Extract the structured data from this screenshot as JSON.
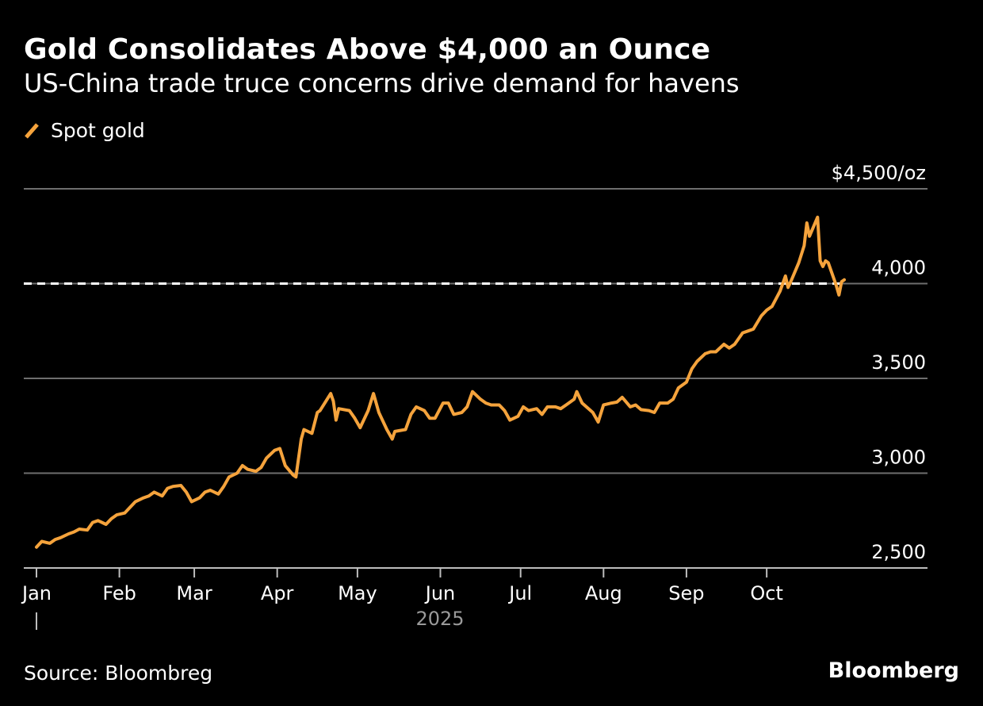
{
  "header": {
    "title": "Gold Consolidates Above $4,000 an Ounce",
    "subtitle": "US-China trade truce concerns drive demand for havens"
  },
  "legend": {
    "series_name": "Spot gold"
  },
  "footer": {
    "source": "Source: Bloombreg",
    "brand": "Bloomberg"
  },
  "colors": {
    "background": "#000000",
    "series": "#f5a33c",
    "grid": "#6e6e6e",
    "reference_line": "#ffffff"
  },
  "chart_data": {
    "type": "line",
    "title": "Gold Consolidates Above $4,000 an Ounce",
    "subtitle": "US-China trade truce concerns drive demand for havens",
    "xlabel": "2025",
    "ylabel": "",
    "ylim": [
      2500,
      4500
    ],
    "y_ticks": [
      2500,
      3000,
      3500,
      4000,
      4500
    ],
    "y_tick_labels": [
      "2,500",
      "3,000",
      "3,500",
      "4,000",
      "$4,500/oz"
    ],
    "x_ticks": [
      "2025-01-01",
      "2025-02-01",
      "2025-03-01",
      "2025-04-01",
      "2025-05-01",
      "2025-06-01",
      "2025-07-01",
      "2025-08-01",
      "2025-09-01",
      "2025-10-01"
    ],
    "x_tick_labels": [
      "Jan",
      "Feb",
      "Mar",
      "Apr",
      "May",
      "Jun",
      "Jul",
      "Aug",
      "Sep",
      "Oct"
    ],
    "year_label": "2025",
    "reference_lines": [
      {
        "y": 4000,
        "style": "dashed"
      }
    ],
    "grid": true,
    "legend_position": "top-left",
    "series": [
      {
        "name": "Spot gold",
        "points": [
          [
            "2025-01-01",
            2610
          ],
          [
            "2025-01-03",
            2640
          ],
          [
            "2025-01-06",
            2630
          ],
          [
            "2025-01-08",
            2650
          ],
          [
            "2025-01-10",
            2660
          ],
          [
            "2025-01-13",
            2680
          ],
          [
            "2025-01-15",
            2690
          ],
          [
            "2025-01-17",
            2705
          ],
          [
            "2025-01-20",
            2700
          ],
          [
            "2025-01-22",
            2740
          ],
          [
            "2025-01-24",
            2750
          ],
          [
            "2025-01-27",
            2730
          ],
          [
            "2025-01-29",
            2760
          ],
          [
            "2025-01-31",
            2780
          ],
          [
            "2025-02-03",
            2790
          ],
          [
            "2025-02-05",
            2820
          ],
          [
            "2025-02-07",
            2850
          ],
          [
            "2025-02-10",
            2870
          ],
          [
            "2025-02-12",
            2880
          ],
          [
            "2025-02-14",
            2900
          ],
          [
            "2025-02-17",
            2880
          ],
          [
            "2025-02-19",
            2920
          ],
          [
            "2025-02-21",
            2930
          ],
          [
            "2025-02-24",
            2935
          ],
          [
            "2025-02-26",
            2900
          ],
          [
            "2025-02-28",
            2850
          ],
          [
            "2025-03-03",
            2870
          ],
          [
            "2025-03-05",
            2900
          ],
          [
            "2025-03-07",
            2910
          ],
          [
            "2025-03-10",
            2890
          ],
          [
            "2025-03-12",
            2930
          ],
          [
            "2025-03-14",
            2980
          ],
          [
            "2025-03-17",
            3000
          ],
          [
            "2025-03-19",
            3040
          ],
          [
            "2025-03-21",
            3020
          ],
          [
            "2025-03-24",
            3010
          ],
          [
            "2025-03-26",
            3030
          ],
          [
            "2025-03-28",
            3080
          ],
          [
            "2025-03-31",
            3120
          ],
          [
            "2025-04-02",
            3130
          ],
          [
            "2025-04-04",
            3040
          ],
          [
            "2025-04-07",
            2990
          ],
          [
            "2025-04-08",
            2980
          ],
          [
            "2025-04-10",
            3180
          ],
          [
            "2025-04-11",
            3230
          ],
          [
            "2025-04-14",
            3210
          ],
          [
            "2025-04-16",
            3320
          ],
          [
            "2025-04-17",
            3330
          ],
          [
            "2025-04-21",
            3420
          ],
          [
            "2025-04-22",
            3380
          ],
          [
            "2025-04-23",
            3280
          ],
          [
            "2025-04-24",
            3340
          ],
          [
            "2025-04-28",
            3330
          ],
          [
            "2025-04-30",
            3290
          ],
          [
            "2025-05-02",
            3240
          ],
          [
            "2025-05-05",
            3330
          ],
          [
            "2025-05-07",
            3420
          ],
          [
            "2025-05-09",
            3320
          ],
          [
            "2025-05-12",
            3230
          ],
          [
            "2025-05-14",
            3180
          ],
          [
            "2025-05-15",
            3220
          ],
          [
            "2025-05-19",
            3230
          ],
          [
            "2025-05-21",
            3310
          ],
          [
            "2025-05-23",
            3350
          ],
          [
            "2025-05-26",
            3330
          ],
          [
            "2025-05-28",
            3290
          ],
          [
            "2025-05-30",
            3290
          ],
          [
            "2025-06-02",
            3370
          ],
          [
            "2025-06-04",
            3370
          ],
          [
            "2025-06-06",
            3310
          ],
          [
            "2025-06-09",
            3320
          ],
          [
            "2025-06-11",
            3350
          ],
          [
            "2025-06-13",
            3430
          ],
          [
            "2025-06-16",
            3390
          ],
          [
            "2025-06-18",
            3370
          ],
          [
            "2025-06-20",
            3360
          ],
          [
            "2025-06-23",
            3360
          ],
          [
            "2025-06-25",
            3330
          ],
          [
            "2025-06-27",
            3280
          ],
          [
            "2025-06-30",
            3300
          ],
          [
            "2025-07-02",
            3350
          ],
          [
            "2025-07-04",
            3330
          ],
          [
            "2025-07-07",
            3340
          ],
          [
            "2025-07-09",
            3310
          ],
          [
            "2025-07-11",
            3350
          ],
          [
            "2025-07-14",
            3350
          ],
          [
            "2025-07-16",
            3340
          ],
          [
            "2025-07-18",
            3360
          ],
          [
            "2025-07-21",
            3390
          ],
          [
            "2025-07-22",
            3430
          ],
          [
            "2025-07-24",
            3370
          ],
          [
            "2025-07-28",
            3320
          ],
          [
            "2025-07-30",
            3270
          ],
          [
            "2025-08-01",
            3360
          ],
          [
            "2025-08-04",
            3370
          ],
          [
            "2025-08-06",
            3375
          ],
          [
            "2025-08-08",
            3400
          ],
          [
            "2025-08-11",
            3350
          ],
          [
            "2025-08-13",
            3360
          ],
          [
            "2025-08-15",
            3335
          ],
          [
            "2025-08-18",
            3330
          ],
          [
            "2025-08-20",
            3320
          ],
          [
            "2025-08-22",
            3370
          ],
          [
            "2025-08-25",
            3370
          ],
          [
            "2025-08-27",
            3390
          ],
          [
            "2025-08-29",
            3450
          ],
          [
            "2025-09-01",
            3480
          ],
          [
            "2025-09-03",
            3550
          ],
          [
            "2025-09-05",
            3590
          ],
          [
            "2025-09-08",
            3630
          ],
          [
            "2025-09-10",
            3640
          ],
          [
            "2025-09-12",
            3640
          ],
          [
            "2025-09-15",
            3680
          ],
          [
            "2025-09-17",
            3660
          ],
          [
            "2025-09-19",
            3680
          ],
          [
            "2025-09-22",
            3740
          ],
          [
            "2025-09-24",
            3750
          ],
          [
            "2025-09-26",
            3760
          ],
          [
            "2025-09-29",
            3830
          ],
          [
            "2025-10-01",
            3860
          ],
          [
            "2025-10-03",
            3880
          ],
          [
            "2025-10-06",
            3960
          ],
          [
            "2025-10-08",
            4040
          ],
          [
            "2025-10-09",
            3980
          ],
          [
            "2025-10-10",
            4010
          ],
          [
            "2025-10-13",
            4110
          ],
          [
            "2025-10-15",
            4200
          ],
          [
            "2025-10-16",
            4320
          ],
          [
            "2025-10-17",
            4250
          ],
          [
            "2025-10-20",
            4350
          ],
          [
            "2025-10-21",
            4120
          ],
          [
            "2025-10-22",
            4090
          ],
          [
            "2025-10-23",
            4120
          ],
          [
            "2025-10-24",
            4110
          ],
          [
            "2025-10-27",
            3990
          ],
          [
            "2025-10-28",
            3940
          ],
          [
            "2025-10-29",
            4010
          ],
          [
            "2025-10-30",
            4020
          ]
        ]
      }
    ]
  }
}
